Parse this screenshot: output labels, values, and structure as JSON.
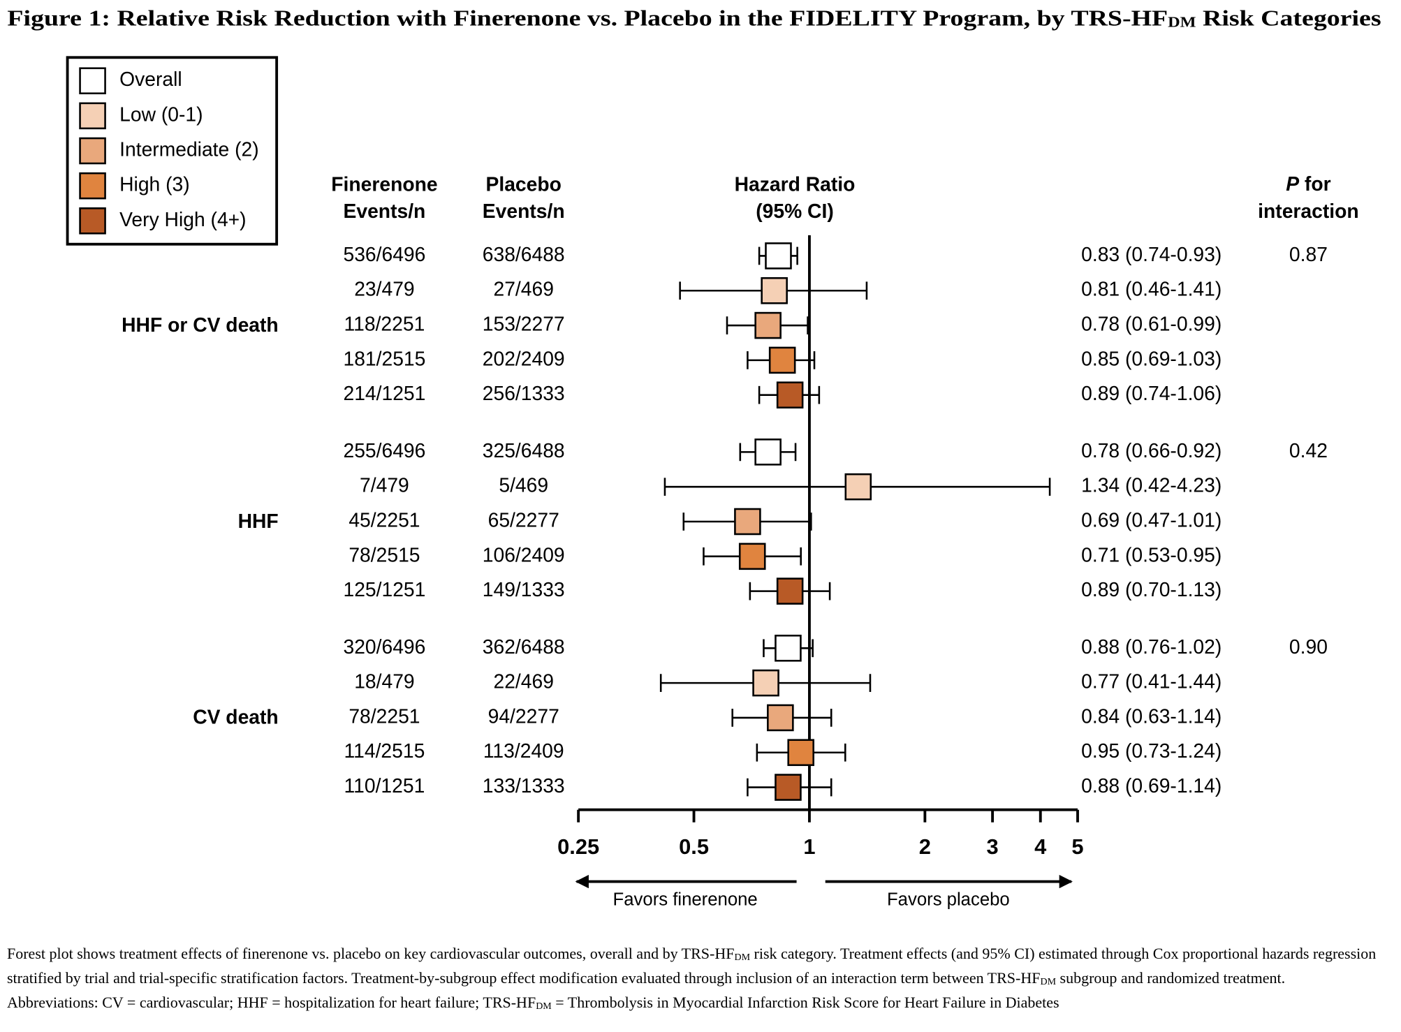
{
  "chart_data": {
    "type": "forest",
    "title": [
      "Figure 1: Relative Risk Reduction with Finerenone vs. Placebo in the FIDELITY Program, by TRS-HF",
      "DM",
      " Risk Categories"
    ],
    "series": [
      {
        "name": "Overall",
        "color": "#ffffff"
      },
      {
        "name": "Low (0-1)",
        "color": "#f5d0b5"
      },
      {
        "name": "Intermediate (2)",
        "color": "#e9a87c"
      },
      {
        "name": "High (3)",
        "color": "#e0843f"
      },
      {
        "name": "Very High (4+)",
        "color": "#b85a26"
      }
    ],
    "column_headers": {
      "finerenone": [
        "Finerenone",
        "Events/n"
      ],
      "placebo": [
        "Placebo",
        "Events/n"
      ],
      "hazard_ratio": [
        "Hazard Ratio",
        "(95% CI)"
      ],
      "p_interaction": {
        "italic": "P",
        "text": " for",
        "line2": "interaction"
      }
    },
    "outcomes": [
      {
        "label": "HHF or CV death",
        "p_interaction": 0.87,
        "rows": [
          {
            "finerenone": "536/6496",
            "placebo": "638/6488",
            "hr": 0.83,
            "ci": [
              0.74,
              0.93
            ],
            "value_label": "0.83 (0.74-0.93)"
          },
          {
            "finerenone": "23/479",
            "placebo": "27/469",
            "hr": 0.81,
            "ci": [
              0.46,
              1.41
            ],
            "value_label": "0.81 (0.46-1.41)"
          },
          {
            "finerenone": "118/2251",
            "placebo": "153/2277",
            "hr": 0.78,
            "ci": [
              0.61,
              0.99
            ],
            "value_label": "0.78 (0.61-0.99)"
          },
          {
            "finerenone": "181/2515",
            "placebo": "202/2409",
            "hr": 0.85,
            "ci": [
              0.69,
              1.03
            ],
            "value_label": "0.85 (0.69-1.03)"
          },
          {
            "finerenone": "214/1251",
            "placebo": "256/1333",
            "hr": 0.89,
            "ci": [
              0.74,
              1.06
            ],
            "value_label": "0.89 (0.74-1.06)"
          }
        ]
      },
      {
        "label": "HHF",
        "p_interaction": 0.42,
        "rows": [
          {
            "finerenone": "255/6496",
            "placebo": "325/6488",
            "hr": 0.78,
            "ci": [
              0.66,
              0.92
            ],
            "value_label": "0.78 (0.66-0.92)"
          },
          {
            "finerenone": "7/479",
            "placebo": "5/469",
            "hr": 1.34,
            "ci": [
              0.42,
              4.23
            ],
            "value_label": "1.34 (0.42-4.23)"
          },
          {
            "finerenone": "45/2251",
            "placebo": "65/2277",
            "hr": 0.69,
            "ci": [
              0.47,
              1.01
            ],
            "value_label": "0.69 (0.47-1.01)"
          },
          {
            "finerenone": "78/2515",
            "placebo": "106/2409",
            "hr": 0.71,
            "ci": [
              0.53,
              0.95
            ],
            "value_label": "0.71 (0.53-0.95)"
          },
          {
            "finerenone": "125/1251",
            "placebo": "149/1333",
            "hr": 0.89,
            "ci": [
              0.7,
              1.13
            ],
            "value_label": "0.89 (0.70-1.13)"
          }
        ]
      },
      {
        "label": "CV death",
        "p_interaction": {
          "value": 0.9,
          "label": "0.90"
        },
        "rows": [
          {
            "finerenone": "320/6496",
            "placebo": "362/6488",
            "hr": 0.88,
            "ci": [
              0.76,
              1.02
            ],
            "value_label": "0.88 (0.76-1.02)"
          },
          {
            "finerenone": "18/479",
            "placebo": "22/469",
            "hr": 0.77,
            "ci": [
              0.41,
              1.44
            ],
            "value_label": "0.77 (0.41-1.44)"
          },
          {
            "finerenone": "78/2251",
            "placebo": "94/2277",
            "hr": 0.84,
            "ci": [
              0.63,
              1.14
            ],
            "value_label": "0.84 (0.63-1.14)"
          },
          {
            "finerenone": "114/2515",
            "placebo": "113/2409",
            "hr": 0.95,
            "ci": [
              0.73,
              1.24
            ],
            "value_label": "0.95 (0.73-1.24)"
          },
          {
            "finerenone": "110/1251",
            "placebo": "133/1333",
            "hr": 0.88,
            "ci": [
              0.69,
              1.14
            ],
            "value_label": "0.88 (0.69-1.14)"
          }
        ]
      }
    ],
    "xlim": [
      0.25,
      5
    ],
    "xticks": [
      0.25,
      0.5,
      1,
      2,
      3,
      4,
      5
    ],
    "log_x": true,
    "reference_line": 1,
    "annotations": {
      "left": "Favors finerenone",
      "right": "Favors placebo"
    },
    "footnote": [
      [
        "Forest plot shows treatment effects of finerenone vs. placebo on key cardiovascular outcomes, overall and by TRS-HF",
        "DM",
        " risk category. Treatment effects (and 95% CI) estimated through Cox proportional hazards regression stratified by trial and trial-specific stratification factors. Treatment-by-subgroup effect modification evaluated through inclusion of an interaction term between TRS-HF",
        "DM",
        " subgroup and randomized treatment."
      ],
      [
        "Abbreviations: CV = cardiovascular; HHF = hospitalization for heart failure; TRS-HF",
        "DM",
        " =  Thrombolysis in Myocardial Infarction Risk Score for Heart Failure in Diabetes"
      ]
    ]
  }
}
